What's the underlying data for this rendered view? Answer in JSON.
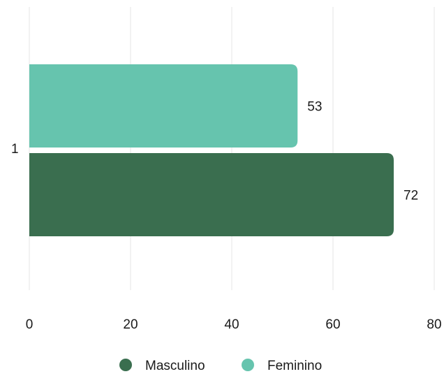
{
  "chart_data": {
    "type": "bar",
    "orientation": "horizontal",
    "categories": [
      "1"
    ],
    "series": [
      {
        "name": "Masculino",
        "values": [
          72
        ],
        "color": "#3a6e4f"
      },
      {
        "name": "Feminino",
        "values": [
          53
        ],
        "color": "#66c4ae"
      }
    ],
    "xlim": [
      0,
      80
    ],
    "xticks": [
      "0",
      "20",
      "40",
      "60",
      "80"
    ],
    "grid": true,
    "legend_position": "bottom",
    "data_labels": true
  }
}
